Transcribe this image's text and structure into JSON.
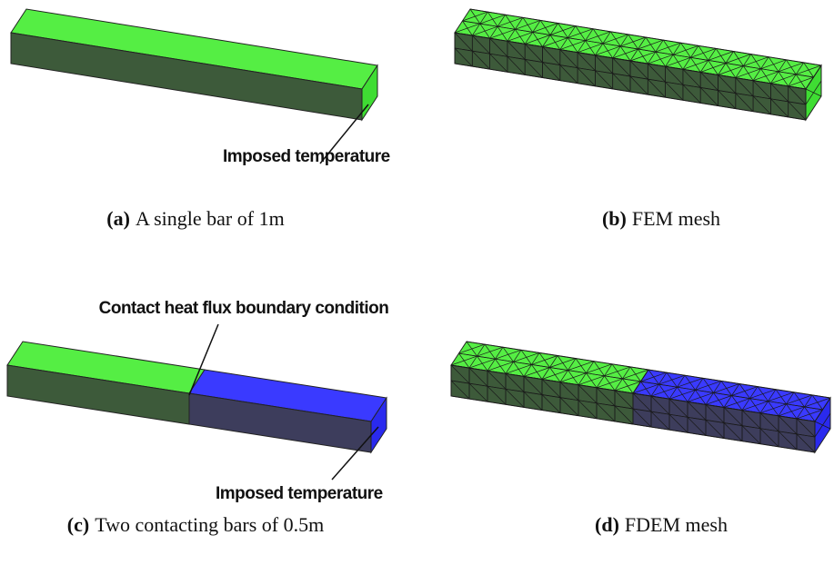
{
  "panels": [
    {
      "label": "(a)",
      "caption": "A single bar of 1m",
      "annotations": [
        "Imposed temperature"
      ]
    },
    {
      "label": "(b)",
      "caption": "FEM mesh"
    },
    {
      "label": "(c)",
      "caption": "Two contacting bars of 0.5m",
      "annotations": [
        "Contact heat flux boundary condition",
        "Imposed temperature"
      ]
    },
    {
      "label": "(d)",
      "caption": "FDEM mesh"
    }
  ]
}
